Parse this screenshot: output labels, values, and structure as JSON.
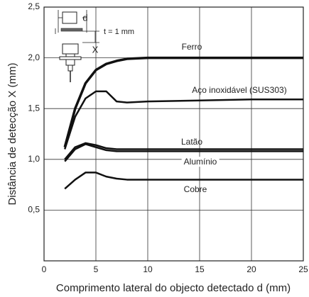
{
  "chart_data": {
    "type": "line",
    "xlabel": "Comprimento lateral do objecto detectado d (mm)",
    "ylabel": "Distância de detecção X (mm)",
    "x": [
      2,
      3,
      4,
      5,
      6,
      7,
      8,
      10,
      15,
      20,
      25
    ],
    "series": [
      {
        "name": "Ferro",
        "color": "#111111",
        "values": [
          1.12,
          1.5,
          1.75,
          1.88,
          1.94,
          1.97,
          1.99,
          2.0,
          2.0,
          2.0,
          2.0
        ]
      },
      {
        "name": "Aço inoxidável (SUS303)",
        "color": "#111111",
        "values": [
          1.1,
          1.42,
          1.6,
          1.67,
          1.67,
          1.57,
          1.56,
          1.57,
          1.58,
          1.59,
          1.59
        ]
      },
      {
        "name": "Latão",
        "color": "#111111",
        "values": [
          1.0,
          1.12,
          1.16,
          1.14,
          1.11,
          1.1,
          1.1,
          1.1,
          1.1,
          1.1,
          1.1
        ]
      },
      {
        "name": "Alumínio",
        "color": "#111111",
        "values": [
          0.98,
          1.1,
          1.15,
          1.12,
          1.09,
          1.08,
          1.08,
          1.08,
          1.08,
          1.08,
          1.08
        ]
      },
      {
        "name": "Cobre",
        "color": "#111111",
        "values": [
          0.71,
          0.8,
          0.87,
          0.87,
          0.83,
          0.81,
          0.8,
          0.8,
          0.8,
          0.8,
          0.8
        ]
      }
    ],
    "xlim": [
      0,
      25
    ],
    "xticks": [
      0,
      5,
      10,
      15,
      20,
      25
    ],
    "ylim": [
      0,
      2.5
    ],
    "yticks": [
      {
        "value": 0.5,
        "label": "0,5"
      },
      {
        "value": 1.0,
        "label": "1,0"
      },
      {
        "value": 1.5,
        "label": "1,5"
      },
      {
        "value": 2.0,
        "label": "2,0"
      },
      {
        "value": 2.5,
        "label": "2,5"
      }
    ],
    "grid": true,
    "annotations": [
      "d",
      "t = 1 mm",
      "X"
    ]
  }
}
